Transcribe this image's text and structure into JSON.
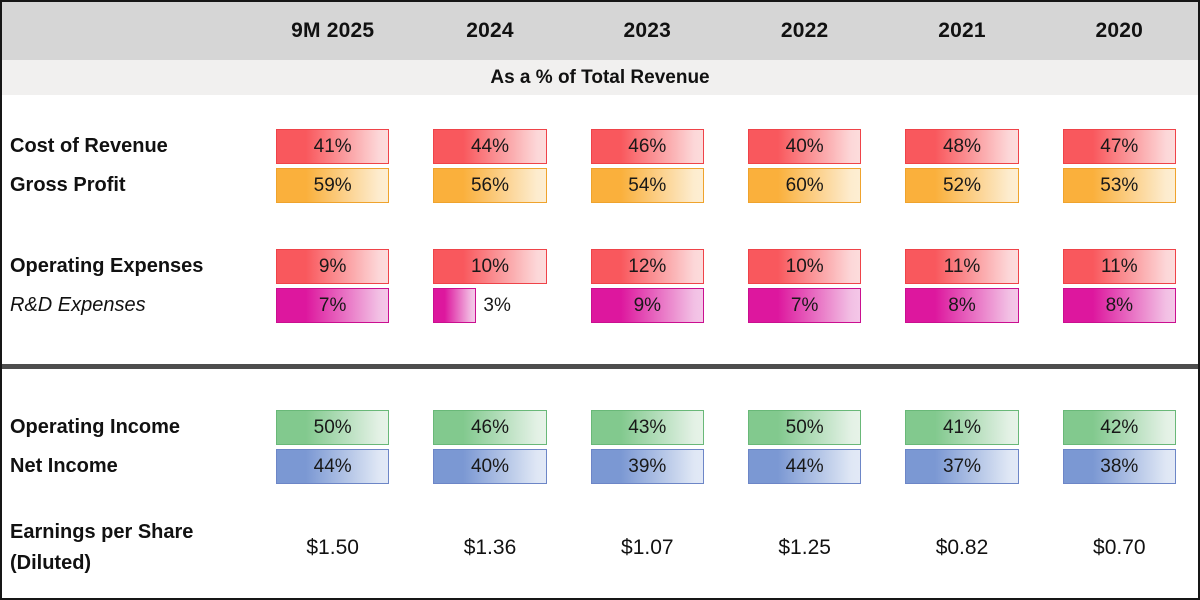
{
  "header": {
    "years": [
      "9M 2025",
      "2024",
      "2023",
      "2022",
      "2021",
      "2020"
    ],
    "subtitle": "As a % of Total Revenue"
  },
  "body": {
    "rows": [
      {
        "label": "Cost of Revenue",
        "color": "red",
        "cells": [
          "41%",
          "44%",
          "46%",
          "40%",
          "48%",
          "47%"
        ]
      },
      {
        "label": "Gross Profit",
        "color": "orange",
        "cells": [
          "59%",
          "56%",
          "54%",
          "60%",
          "52%",
          "53%"
        ]
      },
      {
        "label": "Operating Expenses",
        "color": "red",
        "cells": [
          "9%",
          "10%",
          "12%",
          "10%",
          "11%",
          "11%"
        ]
      },
      {
        "label": "R&D Expenses",
        "color": "magenta",
        "cells": [
          "7%",
          "3%",
          "9%",
          "7%",
          "8%",
          "8%"
        ]
      },
      {
        "label": "Operating Income",
        "color": "green",
        "cells": [
          "50%",
          "46%",
          "43%",
          "50%",
          "41%",
          "42%"
        ]
      },
      {
        "label": "Net Income",
        "color": "blue",
        "cells": [
          "44%",
          "40%",
          "39%",
          "44%",
          "37%",
          "38%"
        ]
      }
    ],
    "eps": {
      "label": "Earnings per Share (Diluted)",
      "values": [
        "$1.50",
        "$1.36",
        "$1.07",
        "$1.25",
        "$0.82",
        "$0.70"
      ]
    }
  },
  "colors": {
    "header_band": "#d6d6d6",
    "subtitle_band": "#f1f0ef",
    "divider": "#4d4d4d",
    "bar_red_solid": "#f9585d",
    "bar_red_light": "#fcd7d8",
    "bar_red_border": "#ef4349",
    "bar_orange_solid": "#fab03c",
    "bar_orange_light": "#fdecce",
    "bar_orange_border": "#efa32d",
    "bar_magenta_solid": "#dd179e",
    "bar_magenta_light": "#f2c0e4",
    "bar_magenta_border": "#ca0f90",
    "bar_green_solid": "#82c98e",
    "bar_green_light": "#e3f1e5",
    "bar_green_border": "#69b878",
    "bar_blue_solid": "#7b98d3",
    "bar_blue_light": "#dfe7f5",
    "bar_blue_border": "#6d86c7"
  },
  "chart_data": {
    "type": "bar",
    "title": "As a % of Total Revenue",
    "categories": [
      "9M 2025",
      "2024",
      "2023",
      "2022",
      "2021",
      "2020"
    ],
    "series": [
      {
        "name": "Cost of Revenue",
        "unit": "%",
        "values": [
          41,
          44,
          46,
          40,
          48,
          47
        ]
      },
      {
        "name": "Gross Profit",
        "unit": "%",
        "values": [
          59,
          56,
          54,
          60,
          52,
          53
        ]
      },
      {
        "name": "Operating Expenses",
        "unit": "%",
        "values": [
          9,
          10,
          12,
          10,
          11,
          11
        ]
      },
      {
        "name": "R&D Expenses",
        "unit": "%",
        "values": [
          7,
          3,
          9,
          7,
          8,
          8
        ]
      },
      {
        "name": "Operating Income",
        "unit": "%",
        "values": [
          50,
          46,
          43,
          50,
          41,
          42
        ]
      },
      {
        "name": "Net Income",
        "unit": "%",
        "values": [
          44,
          40,
          39,
          44,
          37,
          38
        ]
      },
      {
        "name": "Earnings per Share (Diluted)",
        "unit": "USD",
        "values": [
          1.5,
          1.36,
          1.07,
          1.25,
          0.82,
          0.7
        ]
      }
    ],
    "layout": {
      "legend": "none",
      "grid": false,
      "value_labels": "inside-bars",
      "orientation": "horizontal-data-bars"
    }
  }
}
